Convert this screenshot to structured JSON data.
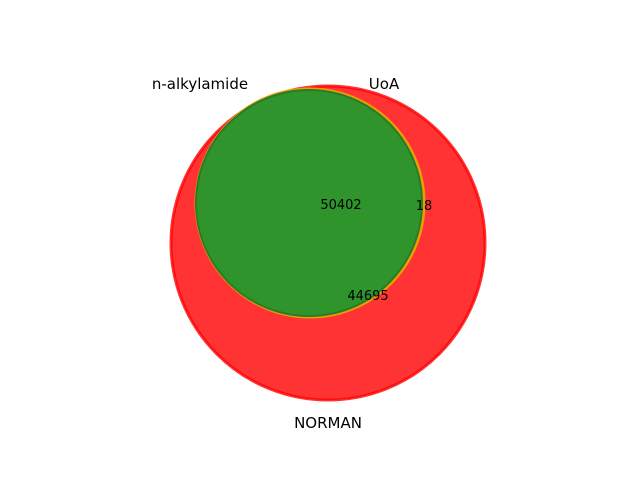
{
  "diagram": {
    "type": "venn3",
    "sets": [
      {
        "key": "normal",
        "label": "NORMAN",
        "color": "#ff0000"
      },
      {
        "key": "uoa",
        "label": "UoA",
        "color": "#ff8c00"
      },
      {
        "key": "alkyl",
        "label": "n-alkylamide",
        "color": "#2e8b2e"
      }
    ],
    "regions": {
      "all_three": "50402",
      "uoa_normal_only": "18",
      "normal_and_subset": "44695"
    }
  }
}
